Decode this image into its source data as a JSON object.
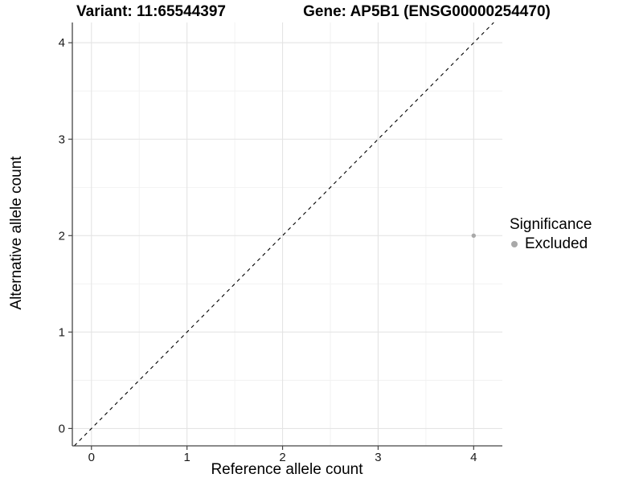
{
  "chart_data": {
    "type": "scatter",
    "title_left": "Variant: 11:65544397",
    "title_right": "Gene: AP5B1 (ENSG00000254470)",
    "xlabel": "Reference allele count",
    "ylabel": "Alternative allele count",
    "x_ticks": [
      0,
      1,
      2,
      3,
      4
    ],
    "y_ticks": [
      0,
      1,
      2,
      3,
      4
    ],
    "x_minor_ticks": [
      0.5,
      1.5,
      2.5,
      3.5
    ],
    "y_minor_ticks": [
      0.5,
      1.5,
      2.5,
      3.5
    ],
    "xlim": [
      -0.2,
      4.3
    ],
    "ylim": [
      -0.18,
      4.21
    ],
    "grid": "major+minor",
    "reference_line": {
      "type": "identity",
      "slope": 1,
      "intercept": 0,
      "linetype": "dashed",
      "color": "#000000"
    },
    "series": [
      {
        "name": "Excluded",
        "marker": "circle",
        "color": "#a9a9a9",
        "points": [
          {
            "x": 4,
            "y": 2
          }
        ]
      }
    ],
    "legend": {
      "title": "Significance",
      "position": "right",
      "items": [
        {
          "label": "Excluded",
          "color": "#a9a9a9",
          "marker": "circle"
        }
      ]
    },
    "colors": {
      "panel_background": "#ffffff",
      "grid_major": "#e4e4e4",
      "grid_minor": "#f1f1f1",
      "axis_line": "#454545",
      "tick_label": "#1a1a1a"
    }
  }
}
